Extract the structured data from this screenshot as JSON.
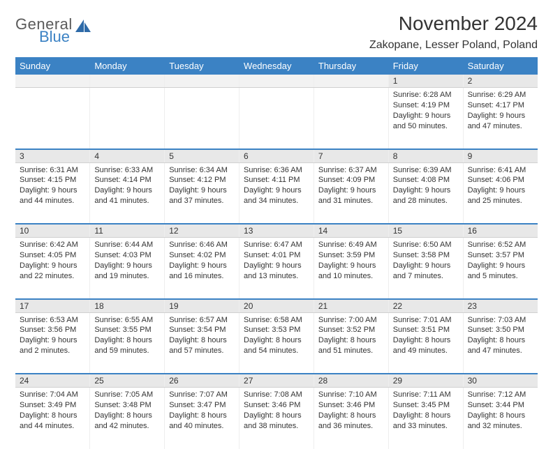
{
  "brand": {
    "general": "General",
    "blue": "Blue",
    "icon_color": "#2e6aa8"
  },
  "title": "November 2024",
  "location": "Zakopane, Lesser Poland, Poland",
  "colors": {
    "header_bg": "#3b82c4",
    "header_text": "#ffffff",
    "daynum_bg": "#e8e8e8",
    "row_divider": "#3b82c4",
    "text": "#333333"
  },
  "day_headers": [
    "Sunday",
    "Monday",
    "Tuesday",
    "Wednesday",
    "Thursday",
    "Friday",
    "Saturday"
  ],
  "weeks": [
    [
      null,
      null,
      null,
      null,
      null,
      {
        "n": "1",
        "sr": "Sunrise: 6:28 AM",
        "ss": "Sunset: 4:19 PM",
        "dl": "Daylight: 9 hours and 50 minutes."
      },
      {
        "n": "2",
        "sr": "Sunrise: 6:29 AM",
        "ss": "Sunset: 4:17 PM",
        "dl": "Daylight: 9 hours and 47 minutes."
      }
    ],
    [
      {
        "n": "3",
        "sr": "Sunrise: 6:31 AM",
        "ss": "Sunset: 4:15 PM",
        "dl": "Daylight: 9 hours and 44 minutes."
      },
      {
        "n": "4",
        "sr": "Sunrise: 6:33 AM",
        "ss": "Sunset: 4:14 PM",
        "dl": "Daylight: 9 hours and 41 minutes."
      },
      {
        "n": "5",
        "sr": "Sunrise: 6:34 AM",
        "ss": "Sunset: 4:12 PM",
        "dl": "Daylight: 9 hours and 37 minutes."
      },
      {
        "n": "6",
        "sr": "Sunrise: 6:36 AM",
        "ss": "Sunset: 4:11 PM",
        "dl": "Daylight: 9 hours and 34 minutes."
      },
      {
        "n": "7",
        "sr": "Sunrise: 6:37 AM",
        "ss": "Sunset: 4:09 PM",
        "dl": "Daylight: 9 hours and 31 minutes."
      },
      {
        "n": "8",
        "sr": "Sunrise: 6:39 AM",
        "ss": "Sunset: 4:08 PM",
        "dl": "Daylight: 9 hours and 28 minutes."
      },
      {
        "n": "9",
        "sr": "Sunrise: 6:41 AM",
        "ss": "Sunset: 4:06 PM",
        "dl": "Daylight: 9 hours and 25 minutes."
      }
    ],
    [
      {
        "n": "10",
        "sr": "Sunrise: 6:42 AM",
        "ss": "Sunset: 4:05 PM",
        "dl": "Daylight: 9 hours and 22 minutes."
      },
      {
        "n": "11",
        "sr": "Sunrise: 6:44 AM",
        "ss": "Sunset: 4:03 PM",
        "dl": "Daylight: 9 hours and 19 minutes."
      },
      {
        "n": "12",
        "sr": "Sunrise: 6:46 AM",
        "ss": "Sunset: 4:02 PM",
        "dl": "Daylight: 9 hours and 16 minutes."
      },
      {
        "n": "13",
        "sr": "Sunrise: 6:47 AM",
        "ss": "Sunset: 4:01 PM",
        "dl": "Daylight: 9 hours and 13 minutes."
      },
      {
        "n": "14",
        "sr": "Sunrise: 6:49 AM",
        "ss": "Sunset: 3:59 PM",
        "dl": "Daylight: 9 hours and 10 minutes."
      },
      {
        "n": "15",
        "sr": "Sunrise: 6:50 AM",
        "ss": "Sunset: 3:58 PM",
        "dl": "Daylight: 9 hours and 7 minutes."
      },
      {
        "n": "16",
        "sr": "Sunrise: 6:52 AM",
        "ss": "Sunset: 3:57 PM",
        "dl": "Daylight: 9 hours and 5 minutes."
      }
    ],
    [
      {
        "n": "17",
        "sr": "Sunrise: 6:53 AM",
        "ss": "Sunset: 3:56 PM",
        "dl": "Daylight: 9 hours and 2 minutes."
      },
      {
        "n": "18",
        "sr": "Sunrise: 6:55 AM",
        "ss": "Sunset: 3:55 PM",
        "dl": "Daylight: 8 hours and 59 minutes."
      },
      {
        "n": "19",
        "sr": "Sunrise: 6:57 AM",
        "ss": "Sunset: 3:54 PM",
        "dl": "Daylight: 8 hours and 57 minutes."
      },
      {
        "n": "20",
        "sr": "Sunrise: 6:58 AM",
        "ss": "Sunset: 3:53 PM",
        "dl": "Daylight: 8 hours and 54 minutes."
      },
      {
        "n": "21",
        "sr": "Sunrise: 7:00 AM",
        "ss": "Sunset: 3:52 PM",
        "dl": "Daylight: 8 hours and 51 minutes."
      },
      {
        "n": "22",
        "sr": "Sunrise: 7:01 AM",
        "ss": "Sunset: 3:51 PM",
        "dl": "Daylight: 8 hours and 49 minutes."
      },
      {
        "n": "23",
        "sr": "Sunrise: 7:03 AM",
        "ss": "Sunset: 3:50 PM",
        "dl": "Daylight: 8 hours and 47 minutes."
      }
    ],
    [
      {
        "n": "24",
        "sr": "Sunrise: 7:04 AM",
        "ss": "Sunset: 3:49 PM",
        "dl": "Daylight: 8 hours and 44 minutes."
      },
      {
        "n": "25",
        "sr": "Sunrise: 7:05 AM",
        "ss": "Sunset: 3:48 PM",
        "dl": "Daylight: 8 hours and 42 minutes."
      },
      {
        "n": "26",
        "sr": "Sunrise: 7:07 AM",
        "ss": "Sunset: 3:47 PM",
        "dl": "Daylight: 8 hours and 40 minutes."
      },
      {
        "n": "27",
        "sr": "Sunrise: 7:08 AM",
        "ss": "Sunset: 3:46 PM",
        "dl": "Daylight: 8 hours and 38 minutes."
      },
      {
        "n": "28",
        "sr": "Sunrise: 7:10 AM",
        "ss": "Sunset: 3:46 PM",
        "dl": "Daylight: 8 hours and 36 minutes."
      },
      {
        "n": "29",
        "sr": "Sunrise: 7:11 AM",
        "ss": "Sunset: 3:45 PM",
        "dl": "Daylight: 8 hours and 33 minutes."
      },
      {
        "n": "30",
        "sr": "Sunrise: 7:12 AM",
        "ss": "Sunset: 3:44 PM",
        "dl": "Daylight: 8 hours and 32 minutes."
      }
    ]
  ]
}
